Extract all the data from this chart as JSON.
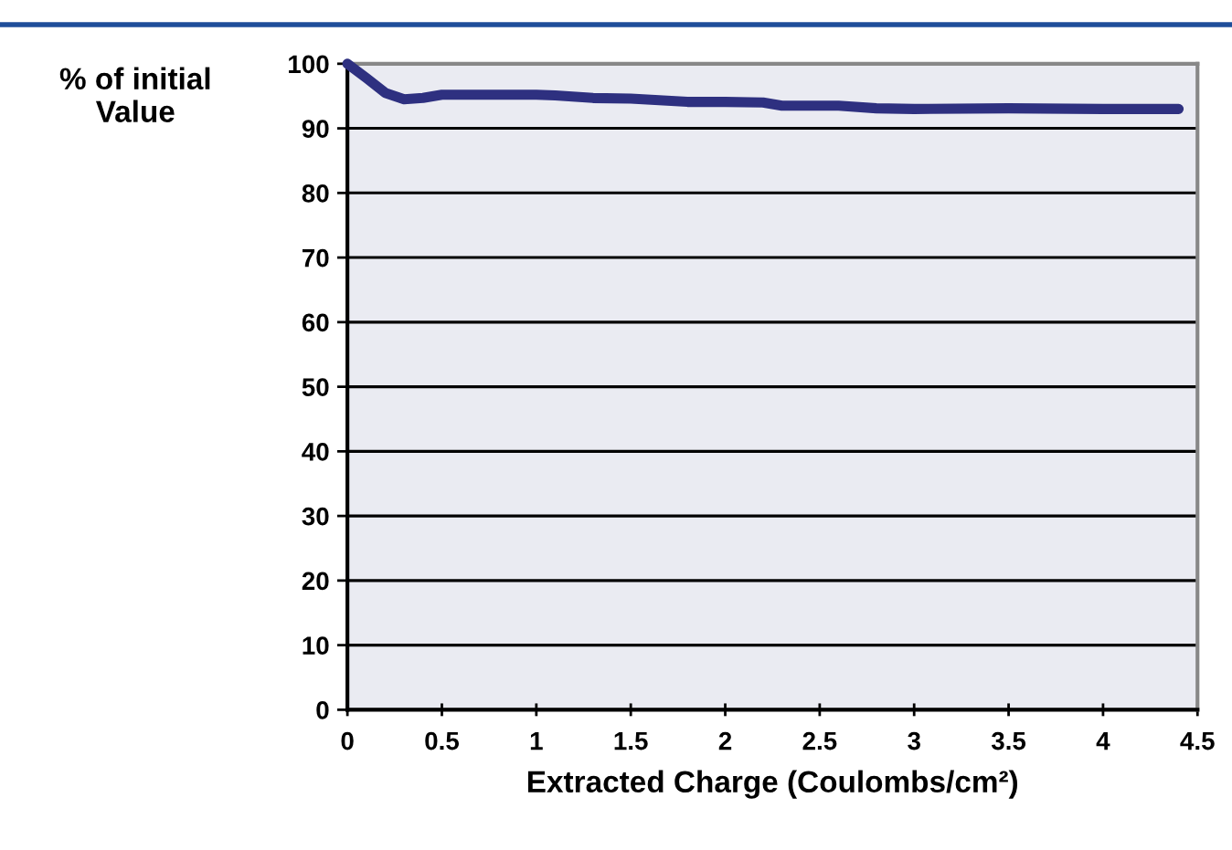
{
  "chart_data": {
    "type": "line",
    "xlabel": "Extracted Charge (Coulombs/cm²)",
    "ylabel": "% of initial\nValue",
    "x": [
      0,
      0.1,
      0.2,
      0.3,
      0.4,
      0.5,
      1.0,
      1.1,
      1.3,
      1.5,
      1.8,
      2.0,
      2.2,
      2.3,
      2.6,
      2.8,
      3.0,
      3.5,
      4.0,
      4.4
    ],
    "series": [
      {
        "color": "#2e3080",
        "values": [
          100,
          97.8,
          95.5,
          94.5,
          94.7,
          95.2,
          95.2,
          95.1,
          94.7,
          94.6,
          94.1,
          94.1,
          94.0,
          93.5,
          93.5,
          93.1,
          93.0,
          93.1,
          93.0,
          93.0
        ]
      }
    ],
    "xlim": [
      0,
      4.5
    ],
    "xticks": [
      0,
      0.5,
      1,
      1.5,
      2,
      2.5,
      3,
      3.5,
      4,
      4.5
    ],
    "ylim": [
      0,
      100
    ],
    "yticks": [
      0,
      10,
      20,
      30,
      40,
      50,
      60,
      70,
      80,
      90,
      100
    ],
    "grid": "y",
    "legend": false,
    "marker": "none",
    "line_style": "solid"
  }
}
